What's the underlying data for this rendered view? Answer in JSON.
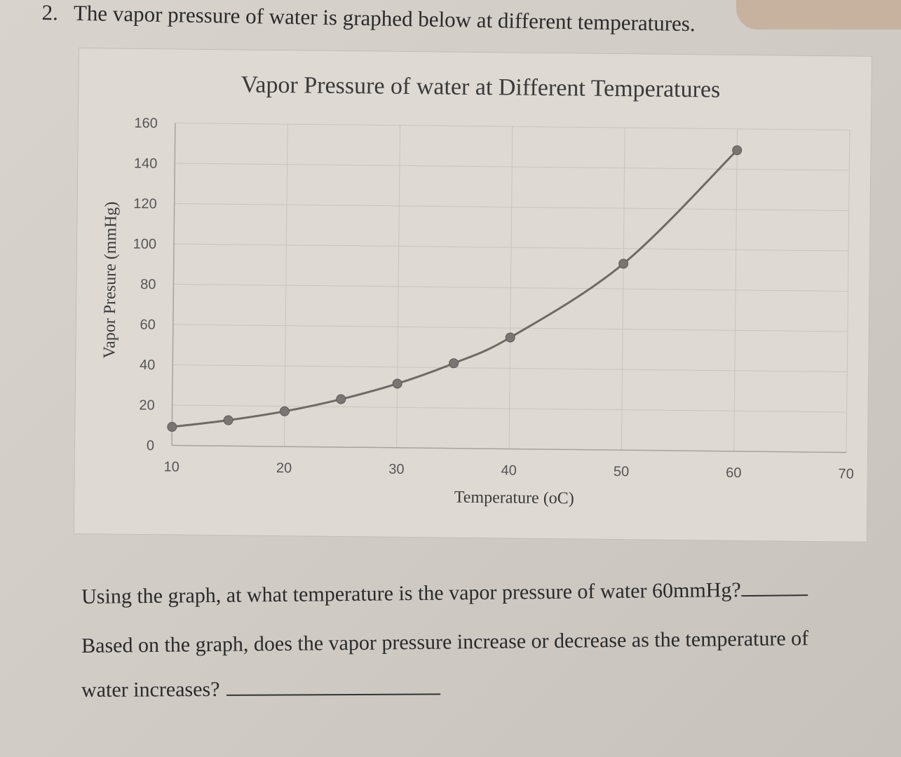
{
  "question": {
    "number": "2.",
    "text": "The vapor pressure of water is graphed below at different temperatures."
  },
  "chart_data": {
    "type": "line",
    "title": "Vapor Pressure of water at Different Temperatures",
    "xlabel": "Temperature (oC)",
    "ylabel": "Vapor Presure (mmHg)",
    "xlim": [
      10,
      70
    ],
    "ylim": [
      0,
      160
    ],
    "xticks": [
      10,
      20,
      30,
      40,
      50,
      60,
      70
    ],
    "yticks": [
      0,
      20,
      40,
      60,
      80,
      100,
      120,
      140,
      160
    ],
    "grid": true,
    "series": [
      {
        "x": [
          10,
          15,
          20,
          25,
          30,
          35,
          40,
          50,
          60
        ],
        "y": [
          9.2,
          12.8,
          17.5,
          23.8,
          31.8,
          42.2,
          55.3,
          92.5,
          149.4
        ]
      }
    ],
    "colors": {
      "line": "#6f6a66",
      "marker": "#7a7572",
      "grid": "#c9c4bf"
    }
  },
  "questions": {
    "q1": "Using the graph, at what temperature is the vapor pressure of water 60mmHg?",
    "q2_line1": "Based on the graph, does the vapor pressure increase or decrease as the temperature of",
    "q2_line2": "water increases?"
  }
}
